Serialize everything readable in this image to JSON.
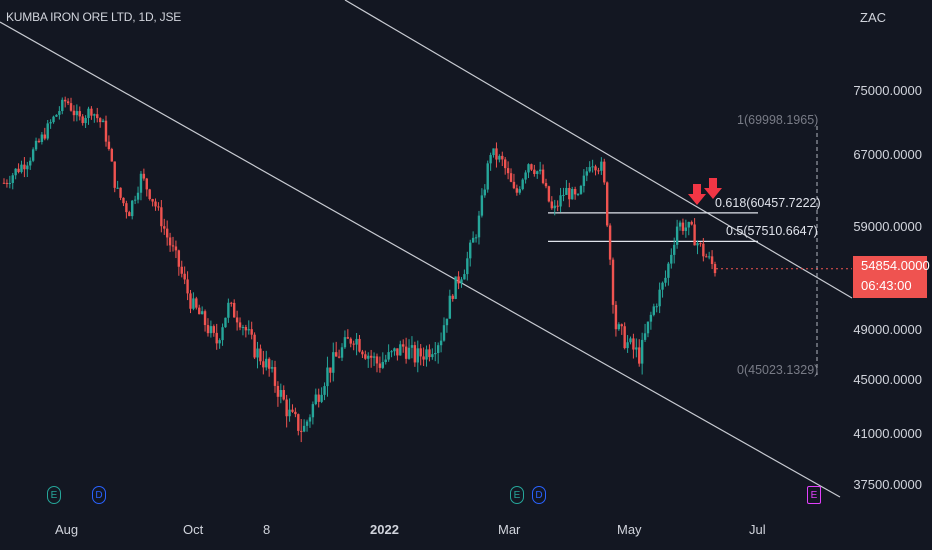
{
  "title": "KUMBA IRON ORE LTD, 1D, JSE",
  "currency": "ZAC",
  "price_label": "54854.0000",
  "countdown": "06:43:00",
  "colors": {
    "up": "#26a69a",
    "down": "#ef5350",
    "background": "#131722",
    "line": "#d1d4dc",
    "arrow": "#f23645"
  },
  "fib_labels": {
    "level1": "1(69998.1965)",
    "level618": "0.618(60457.7222)",
    "level5": "0.5(57510.6647)",
    "level0": "0(45023.1329)"
  },
  "events": [
    {
      "letter": "E",
      "color": "#26a69a"
    },
    {
      "letter": "D",
      "color": "#2962ff"
    },
    {
      "letter": "E",
      "color": "#26a69a"
    },
    {
      "letter": "D",
      "color": "#2962ff"
    },
    {
      "letter": "E",
      "color": "#e040fb"
    }
  ],
  "chart_data": {
    "type": "candlestick",
    "title": "KUMBA IRON ORE LTD, 1D, JSE",
    "y_unit": "ZAC",
    "y_ticks": [
      "75000.0000",
      "67000.0000",
      "59000.0000",
      "49000.0000",
      "45000.0000",
      "41000.0000",
      "37500.0000"
    ],
    "x_ticks": [
      "Aug",
      "Oct",
      "8",
      "2022",
      "Mar",
      "May",
      "Jul"
    ],
    "last_price": 54854,
    "fibonacci": [
      {
        "level": "1",
        "value": 69998.1965
      },
      {
        "level": "0.618",
        "value": 60457.7222
      },
      {
        "level": "0.5",
        "value": 57510.6647
      },
      {
        "level": "0",
        "value": 45023.1329
      }
    ],
    "trend_channel": "descending",
    "closes": [
      63800,
      65200,
      66500,
      68900,
      71500,
      73800,
      71200,
      72600,
      70400,
      63000,
      60500,
      64500,
      61800,
      58200,
      55200,
      51500,
      49800,
      47800,
      51200,
      49800,
      47500,
      46200,
      44200,
      42100,
      41200,
      43600,
      45800,
      47200,
      48500,
      47200,
      46200,
      46800,
      47600,
      46700,
      47300,
      48300,
      52800,
      55200,
      59100,
      67300,
      66000,
      62300,
      66200,
      64700,
      60400,
      63000,
      61800,
      66400,
      65400,
      49300,
      47800,
      46800,
      50800,
      53800,
      59300,
      58700,
      56500,
      54854
    ]
  }
}
